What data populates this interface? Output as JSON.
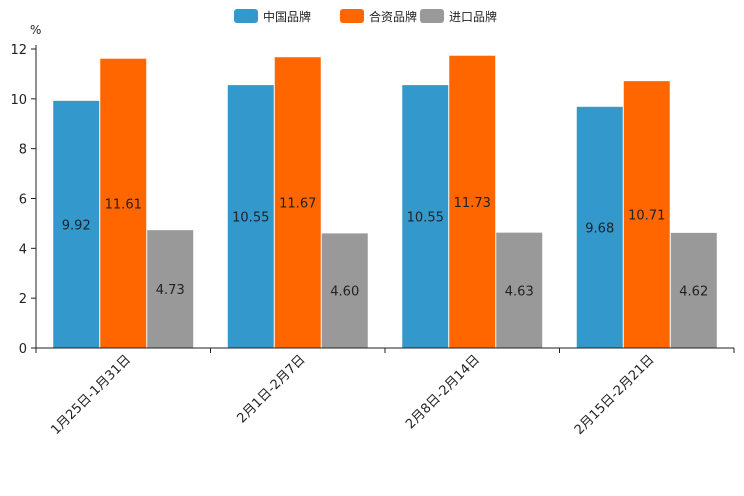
{
  "chart_data": {
    "type": "bar",
    "unit": "%",
    "categories": [
      "1月25日-1月31日",
      "2月1日-2月7日",
      "2月8日-2月14日",
      "2月15日-2月21日"
    ],
    "series": [
      {
        "name": "中国品牌",
        "color": "#3399cc",
        "values": [
          9.92,
          10.55,
          10.55,
          9.68
        ],
        "labels": [
          "9.92",
          "10.55",
          "10.55",
          "9.68"
        ]
      },
      {
        "name": "合资品牌",
        "color": "#ff6600",
        "values": [
          11.61,
          11.67,
          11.73,
          10.71
        ],
        "labels": [
          "11.61",
          "11.67",
          "11.73",
          "10.71"
        ]
      },
      {
        "name": "进口品牌",
        "color": "#999999",
        "values": [
          4.73,
          4.6,
          4.63,
          4.62
        ],
        "labels": [
          "4.73",
          "4.60",
          "4.63",
          "4.62"
        ]
      }
    ],
    "ylim": [
      0,
      12
    ],
    "yticks": [
      "0",
      "2",
      "4",
      "6",
      "8",
      "10",
      "12"
    ],
    "legend_position": "top-center"
  }
}
